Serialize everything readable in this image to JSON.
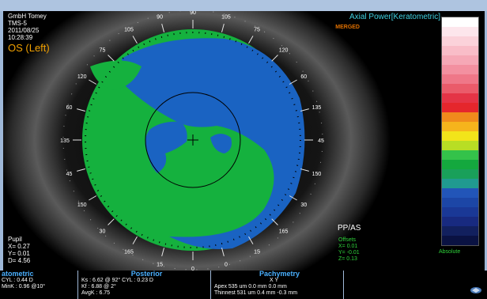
{
  "header": {
    "info_lines": [
      "GmbH Tomey",
      "TMS-5",
      "2011/08/25",
      "10:28:39"
    ],
    "eye": "OS (Left)",
    "map_title": "Axial Power[Keratometric]",
    "merged": "MERGED"
  },
  "axis": {
    "labels": [
      "90",
      "105",
      "75",
      "120",
      "60",
      "135",
      "45",
      "150",
      "30",
      "165",
      "15",
      "0",
      "0",
      "15",
      "165",
      "30",
      "150",
      "45",
      "135",
      "60",
      "120",
      "75",
      "105",
      "90"
    ]
  },
  "pupil": {
    "lines": [
      "Pupil",
      "X= 0.27",
      "Y= 0.01",
      "D= 4.56"
    ]
  },
  "offsets": {
    "label": "PP/AS",
    "lines": [
      "Offsets",
      "X= 0.01",
      "Y= -0.01",
      "Z= 0.13"
    ]
  },
  "scale": {
    "label": "Absolute",
    "colors": [
      "#ffffff",
      "#fde6ec",
      "#fbd2da",
      "#f9bdc8",
      "#f6a8b6",
      "#f390a0",
      "#ef7788",
      "#ea5b6a",
      "#e43446",
      "#e5262c",
      "#f08a1c",
      "#f6b41c",
      "#f2e41a",
      "#b8de24",
      "#34c24a",
      "#14a83e",
      "#19a05a",
      "#209a90",
      "#2255b8",
      "#1c46a6",
      "#1a3896",
      "#182a80",
      "#12205e",
      "#0a1242"
    ]
  },
  "bottom": {
    "keratometric": {
      "head": "atometric",
      "lines": [
        "CYL :     0.44  D",
        "MinK :    0.96 @10°"
      ]
    },
    "posterior": {
      "head": "Posterior",
      "lines": [
        "Ks :  6.62 @ 92° CYL :    0.23  D",
        "Kf :   6.88 @   2°",
        "AvgK :  6.75"
      ]
    },
    "pachymetry": {
      "head": "Pachymetry",
      "cols": "X          Y",
      "lines": [
        "Apex      535 um   0.0 mm   0.0 mm",
        "Thinnest   531 um   0.4 mm  -0.3 mm"
      ]
    }
  },
  "colors": {
    "blue_zone": "#1a63c2",
    "green_zone": "#15b13e",
    "accent": "#3fd0e0"
  }
}
